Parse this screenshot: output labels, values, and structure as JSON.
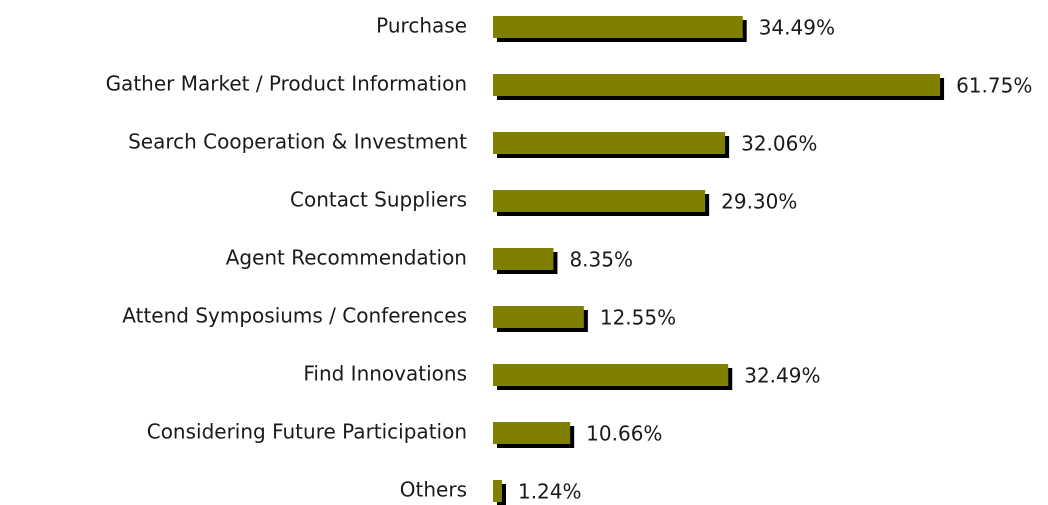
{
  "chart_data": {
    "type": "bar",
    "orientation": "horizontal",
    "categories": [
      "Purchase",
      "Gather Market / Product Information",
      "Search Cooperation & Investment",
      "Contact Suppliers",
      "Agent Recommendation",
      "Attend Symposiums / Conferences",
      "Find Innovations",
      "Considering Future Participation",
      "Others"
    ],
    "values": [
      34.49,
      61.75,
      32.06,
      29.3,
      8.35,
      12.55,
      32.49,
      10.66,
      1.24
    ],
    "value_labels": [
      "34.49%",
      "61.75%",
      "32.06%",
      "29.30%",
      "8.35%",
      "12.55%",
      "32.49%",
      "10.66%",
      "1.24%"
    ],
    "color": "#808000",
    "shadow_color": "#000000"
  }
}
